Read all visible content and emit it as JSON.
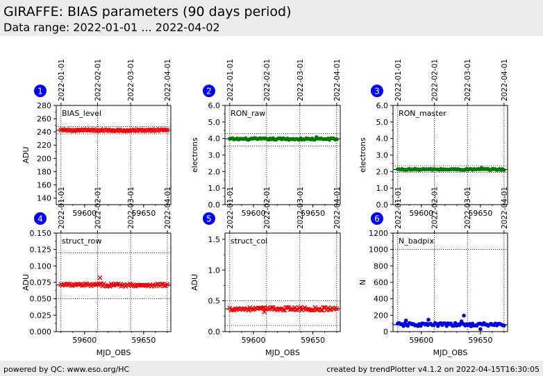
{
  "header": {
    "title": "GIRAFFE: BIAS parameters (90 days period)",
    "subtitle": "Data range: 2022-01-01 ... 2022-04-02"
  },
  "footer": {
    "left": "powered by QC: www.eso.org/HC",
    "right": "created by trendPlotter v4.1.2 on 2022-04-15T16:30:05"
  },
  "colors": {
    "header_bg": "#ececec",
    "badge": "#0000ff",
    "red_series": "#ee0000",
    "green_series": "#007700",
    "blue_series": "#0000dd"
  },
  "chart_data": [
    {
      "type": "scatter",
      "badge": "1",
      "label": "BIAS_level",
      "ylabel": "ADU",
      "xlabel": "",
      "xlim": [
        59576,
        59673
      ],
      "ylim": [
        130,
        280
      ],
      "yticks": [
        140,
        160,
        180,
        200,
        220,
        240,
        260,
        280
      ],
      "ytick_labels": [
        "140",
        "160",
        "180",
        "200",
        "220",
        "240",
        "260",
        "280"
      ],
      "xticks": [
        59600,
        59650
      ],
      "xtick_labels": [
        "59600",
        "59650"
      ],
      "date_ticks_mjd": [
        59580,
        59611,
        59639,
        59670
      ],
      "date_tick_labels": [
        "2022-01-01",
        "2022-02-01",
        "2022-03-01",
        "2022-04-01"
      ],
      "reference": {
        "mean": 242.5,
        "lower": 237,
        "upper": 248
      },
      "marker": "x",
      "color": "#ee0000",
      "series": [
        {
          "x_start": 59580,
          "x_end": 59670,
          "count": 75,
          "base": 242.5,
          "amplitude": 1.2,
          "spikes": []
        }
      ]
    },
    {
      "type": "scatter",
      "badge": "2",
      "label": "RON_raw",
      "ylabel": "electrons",
      "xlabel": "",
      "xlim": [
        59576,
        59673
      ],
      "ylim": [
        0,
        6
      ],
      "yticks": [
        0,
        1,
        2,
        3,
        4,
        5,
        6
      ],
      "ytick_labels": [
        "0.0",
        "1.0",
        "2.0",
        "3.0",
        "4.0",
        "5.0",
        "6.0"
      ],
      "xticks": [
        59600,
        59650
      ],
      "xtick_labels": [
        "59600",
        "59650"
      ],
      "date_ticks_mjd": [
        59580,
        59611,
        59639,
        59670
      ],
      "date_tick_labels": [
        "2022-01-01",
        "2022-02-01",
        "2022-03-01",
        "2022-04-01"
      ],
      "reference": {
        "mean": 3.98,
        "lower": 3.55,
        "upper": 4.3
      },
      "marker": "dot",
      "color": "#007700",
      "series": [
        {
          "x_start": 59580,
          "x_end": 59670,
          "count": 75,
          "base": 3.97,
          "amplitude": 0.05,
          "spikes": [
            {
              "x": 59653,
              "y": 4.08
            }
          ]
        }
      ]
    },
    {
      "type": "scatter",
      "badge": "3",
      "label": "RON_master",
      "ylabel": "electrons",
      "xlabel": "",
      "xlim": [
        59576,
        59673
      ],
      "ylim": [
        0,
        6
      ],
      "yticks": [
        0,
        1,
        2,
        3,
        4,
        5,
        6
      ],
      "ytick_labels": [
        "0.0",
        "1.0",
        "2.0",
        "3.0",
        "4.0",
        "5.0",
        "6.0"
      ],
      "xticks": [
        59600,
        59650
      ],
      "xtick_labels": [
        "59600",
        "59650"
      ],
      "date_ticks_mjd": [
        59580,
        59611,
        59639,
        59670
      ],
      "date_tick_labels": [
        "2022-01-01",
        "2022-02-01",
        "2022-03-01",
        "2022-04-01"
      ],
      "reference": {
        "mean": 2.12,
        "lower": 1.95,
        "upper": 2.35
      },
      "marker": "dot",
      "color": "#007700",
      "series": [
        {
          "x_start": 59580,
          "x_end": 59670,
          "count": 75,
          "base": 2.13,
          "amplitude": 0.04,
          "spikes": [
            {
              "x": 59651,
              "y": 2.22
            }
          ]
        }
      ]
    },
    {
      "type": "scatter",
      "badge": "4",
      "label": "struct_row",
      "ylabel": "ADU",
      "xlabel": "MJD_OBS",
      "xlim": [
        59576,
        59673
      ],
      "ylim": [
        0,
        0.15
      ],
      "yticks": [
        0,
        0.025,
        0.05,
        0.075,
        0.1,
        0.125,
        0.15
      ],
      "ytick_labels": [
        "0.000",
        "0.025",
        "0.050",
        "0.075",
        "0.100",
        "0.125",
        "0.150"
      ],
      "xticks": [
        59600,
        59650
      ],
      "xtick_labels": [
        "59600",
        "59650"
      ],
      "date_ticks_mjd": [
        59580,
        59611,
        59639,
        59670
      ],
      "date_tick_labels": [
        "2022-01-01",
        "2022-02-01",
        "2022-03-01",
        "2022-04-01"
      ],
      "reference": {
        "mean": 0.071,
        "lower": 0.05,
        "upper": 0.12
      },
      "marker": "x",
      "color": "#ee0000",
      "series": [
        {
          "x_start": 59580,
          "x_end": 59670,
          "count": 75,
          "base": 0.071,
          "amplitude": 0.002,
          "spikes": [
            {
              "x": 59613,
              "y": 0.082
            }
          ]
        }
      ]
    },
    {
      "type": "scatter",
      "badge": "5",
      "label": "struct_col",
      "ylabel": "ADU",
      "xlabel": "MJD_OBS",
      "xlim": [
        59576,
        59673
      ],
      "ylim": [
        0,
        1.6
      ],
      "yticks": [
        0,
        0.5,
        1,
        1.5
      ],
      "ytick_labels": [
        "0.0",
        "0.5",
        "1.0",
        "1.5"
      ],
      "xticks": [
        59600,
        59650
      ],
      "xtick_labels": [
        "59600",
        "59650"
      ],
      "date_ticks_mjd": [
        59580,
        59611,
        59639,
        59670
      ],
      "date_tick_labels": [
        "2022-01-01",
        "2022-02-01",
        "2022-03-01",
        "2022-04-01"
      ],
      "reference": {
        "mean": 0.37,
        "lower": 0.1,
        "upper": 0.5
      },
      "marker": "x",
      "color": "#ee0000",
      "series": [
        {
          "x_start": 59580,
          "x_end": 59670,
          "count": 75,
          "base": 0.37,
          "amplitude": 0.025,
          "spikes": [
            {
              "x": 59609,
              "y": 0.32
            }
          ]
        }
      ]
    },
    {
      "type": "scatter",
      "badge": "6",
      "label": "N_badpix",
      "ylabel": "N",
      "xlabel": "MJD_OBS",
      "xlim": [
        59576,
        59673
      ],
      "ylim": [
        0,
        1200
      ],
      "yticks": [
        0,
        200,
        400,
        600,
        800,
        1000,
        1200
      ],
      "ytick_labels": [
        "0",
        "200",
        "400",
        "600",
        "800",
        "1000",
        "1200"
      ],
      "xticks": [
        59600,
        59650
      ],
      "xtick_labels": [
        "59600",
        "59650"
      ],
      "date_ticks_mjd": [
        59580,
        59611,
        59639,
        59670
      ],
      "date_tick_labels": [
        "2022-01-01",
        "2022-02-01",
        "2022-03-01",
        "2022-04-01"
      ],
      "reference": {
        "mean": 85,
        "lower": 80,
        "upper": 1000
      },
      "marker": "dot",
      "color": "#0000dd",
      "series": [
        {
          "x_start": 59580,
          "x_end": 59670,
          "count": 75,
          "base": 85,
          "amplitude": 20,
          "spikes": [
            {
              "x": 59587,
              "y": 135
            },
            {
              "x": 59606,
              "y": 145
            },
            {
              "x": 59636,
              "y": 195
            },
            {
              "x": 59634,
              "y": 125
            },
            {
              "x": 59650,
              "y": 30
            }
          ]
        }
      ]
    }
  ]
}
